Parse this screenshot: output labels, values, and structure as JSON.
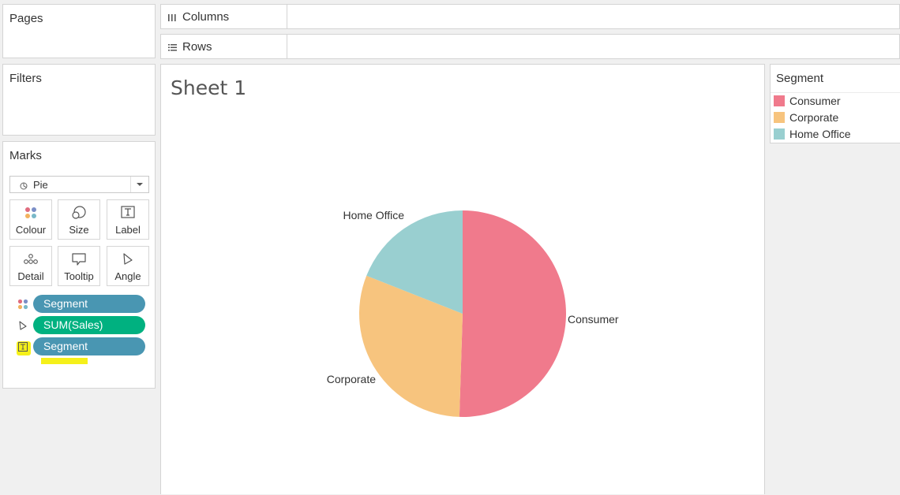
{
  "left": {
    "pages_title": "Pages",
    "filters_title": "Filters",
    "marks_title": "Marks",
    "mark_type": "Pie",
    "cards": [
      {
        "label": "Colour",
        "icon": "colour-dots-icon"
      },
      {
        "label": "Size",
        "icon": "size-icon"
      },
      {
        "label": "Label",
        "icon": "label-text-icon"
      },
      {
        "label": "Detail",
        "icon": "detail-dots-icon"
      },
      {
        "label": "Tooltip",
        "icon": "tooltip-icon"
      },
      {
        "label": "Angle",
        "icon": "angle-icon"
      }
    ],
    "pills": [
      {
        "label": "Segment",
        "color": "#4996b2",
        "icon": "colour-dots-icon"
      },
      {
        "label": "SUM(Sales)",
        "color": "#00b180",
        "icon": "angle-icon"
      },
      {
        "label": "Segment",
        "color": "#4996b2",
        "icon": "label-text-icon"
      }
    ]
  },
  "shelves": {
    "columns_label": "Columns",
    "rows_label": "Rows"
  },
  "sheet": {
    "title": "Sheet 1"
  },
  "legend": {
    "title": "Segment",
    "items": [
      {
        "label": "Consumer",
        "color": "#f07a8c"
      },
      {
        "label": "Corporate",
        "color": "#f7c47e"
      },
      {
        "label": "Home Office",
        "color": "#99cfd0"
      }
    ]
  },
  "chart_data": {
    "type": "pie",
    "title": "Sheet 1",
    "categories": [
      "Consumer",
      "Corporate",
      "Home Office"
    ],
    "values": [
      50.5,
      30.5,
      19.0
    ],
    "colors": [
      "#f07a8c",
      "#f7c47e",
      "#99cfd0"
    ]
  }
}
